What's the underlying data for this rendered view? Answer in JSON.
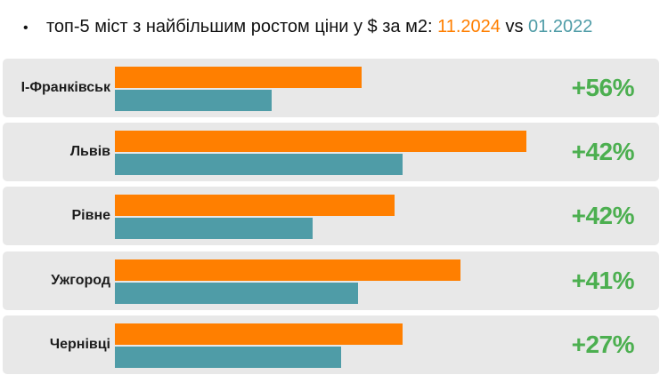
{
  "header": {
    "bullet": "•",
    "title_text": "топ-5 міст з найбільшим ростом ціни у $ за м2:",
    "date_new": "11.2024",
    "vs": "vs",
    "date_old": "01.2022"
  },
  "colors": {
    "series_new": "#ff7f00",
    "series_old": "#4f9ca7",
    "growth": "#4caf50",
    "row_bg": "#e8e8e8"
  },
  "chart_data": {
    "type": "bar",
    "orientation": "horizontal",
    "title": "топ-5 міст з найбільшим ростом ціни у $ за м2: 11.2024 vs 01.2022",
    "categories": [
      "І-Франківськ",
      "Львів",
      "Рівне",
      "Ужгород",
      "Чернівці"
    ],
    "series": [
      {
        "name": "11.2024",
        "values": [
          60,
          100,
          68,
          84,
          70
        ]
      },
      {
        "name": "01.2022",
        "values": [
          38,
          70,
          48,
          59,
          55
        ]
      }
    ],
    "growth_labels": [
      "+56%",
      "+42%",
      "+42%",
      "+41%",
      "+27%"
    ],
    "xlim": [
      0,
      100
    ],
    "grid": false,
    "legend": "title"
  }
}
